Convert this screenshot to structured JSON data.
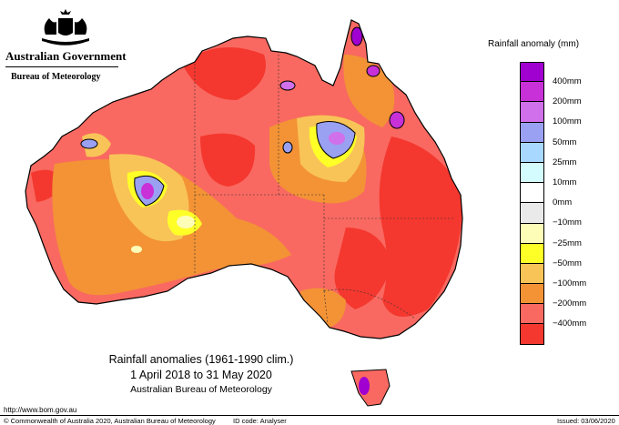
{
  "header": {
    "government": "Australian Government",
    "department": "Bureau of Meteorology"
  },
  "legend": {
    "title": "Rainfall anomaly (mm)",
    "items": [
      {
        "label": "400mm",
        "color": "#a000d0"
      },
      {
        "label": "200mm",
        "color": "#c830d8"
      },
      {
        "label": "100mm",
        "color": "#d070ea"
      },
      {
        "label": "50mm",
        "color": "#9aa0f2"
      },
      {
        "label": "25mm",
        "color": "#a8d8ff"
      },
      {
        "label": "10mm",
        "color": "#d4fcff"
      },
      {
        "label": "0mm",
        "color": "#ffffff"
      },
      {
        "label": "−10mm",
        "color": "#eaeaea"
      },
      {
        "label": "−25mm",
        "color": "#fdfdb8"
      },
      {
        "label": "−50mm",
        "color": "#ffff28"
      },
      {
        "label": "−100mm",
        "color": "#f8c458"
      },
      {
        "label": "−200mm",
        "color": "#f39335"
      },
      {
        "label": "−400mm",
        "color": "#f96961"
      },
      {
        "label": "",
        "color": "#f4382f"
      }
    ]
  },
  "caption": {
    "line1": "Rainfall anomalies (1961-1990 clim.)",
    "line2": "1 April 2018 to 31 May 2020",
    "line3": "Australian Bureau of Meteorology"
  },
  "footer": {
    "url": "http://www.bom.gov.au",
    "copyright": "© Commonwealth of Australia 2020, Australian Bureau of Meteorology",
    "id_code": "ID code: Analyser",
    "issued": "Issued: 03/06/2020"
  },
  "map_colors": {
    "land_default": "#f96961",
    "severe_deficit": "#f4382f",
    "moderate_deficit": "#f39335",
    "mild_deficit": "#f8c458",
    "slight_deficit": "#ffff28",
    "near_normal": "#fdfdb8",
    "surplus_light": "#9aa0f2",
    "surplus_strong": "#c830d8",
    "surplus_extreme": "#a000d0"
  }
}
